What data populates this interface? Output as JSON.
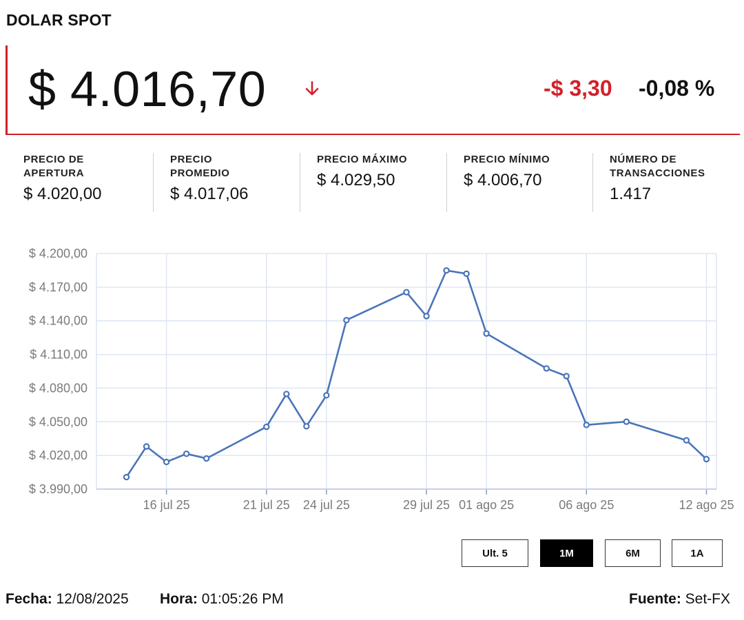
{
  "header": {
    "title": "DOLAR SPOT"
  },
  "quote": {
    "price": "$ 4.016,70",
    "direction_icon": "arrow-down-icon",
    "change_abs": "-$ 3,30",
    "change_pct": "-0,08 %"
  },
  "stats": [
    {
      "label": "PRECIO DE APERTURA",
      "value": "$ 4.020,00"
    },
    {
      "label": "PRECIO PROMEDIO",
      "value": "$ 4.017,06"
    },
    {
      "label": "PRECIO MÁXIMO",
      "value": "$ 4.029,50"
    },
    {
      "label": "PRECIO MÍNIMO",
      "value": "$ 4.006,70"
    },
    {
      "label": "NÚMERO DE TRANSACCIONES",
      "value": "1.417"
    }
  ],
  "range_buttons": [
    {
      "label": "Ult. 5",
      "active": false
    },
    {
      "label": "1M",
      "active": true
    },
    {
      "label": "6M",
      "active": false
    },
    {
      "label": "1A",
      "active": false
    }
  ],
  "footer": {
    "fecha_label": "Fecha:",
    "fecha_value": "12/08/2025",
    "hora_label": "Hora:",
    "hora_value": "01:05:26 PM",
    "fuente_label": "Fuente:",
    "fuente_value": "Set-FX"
  },
  "colors": {
    "accent": "#cf1d2a",
    "negative": "#d3202b",
    "line": "#4a74b8",
    "grid": "#dde6f3"
  },
  "chart_data": {
    "type": "line",
    "title": "",
    "xlabel": "",
    "ylabel": "",
    "grid": true,
    "x_tick_labels": [
      "16 jul 25",
      "21 jul 25",
      "24 jul 25",
      "29 jul 25",
      "01 ago 25",
      "06 ago 25",
      "12 ago 25"
    ],
    "y_tick_labels": [
      "$ 3.990,00",
      "$ 4.020,00",
      "$ 4.050,00",
      "$ 4.080,00",
      "$ 4.110,00",
      "$ 4.140,00",
      "$ 4.170,00",
      "$ 4.200,00"
    ],
    "ylim": [
      3990,
      4200
    ],
    "series": [
      {
        "x": [
          "2025-07-14",
          "2025-07-15",
          "2025-07-16",
          "2025-07-17",
          "2025-07-18",
          "2025-07-21",
          "2025-07-22",
          "2025-07-23",
          "2025-07-24",
          "2025-07-25",
          "2025-07-28",
          "2025-07-29",
          "2025-07-30",
          "2025-07-31",
          "2025-08-01",
          "2025-08-04",
          "2025-08-05",
          "2025-08-06",
          "2025-08-08",
          "2025-08-11",
          "2025-08-12"
        ],
        "values": [
          4000.7,
          4028.0,
          4014.2,
          4021.5,
          4017.3,
          4045.5,
          4074.8,
          4046.0,
          4073.6,
          4140.6,
          4165.5,
          4144.2,
          4184.9,
          4182.0,
          4128.7,
          4097.6,
          4090.7,
          4047.2,
          4050.1,
          4033.5,
          4016.7
        ]
      }
    ]
  }
}
